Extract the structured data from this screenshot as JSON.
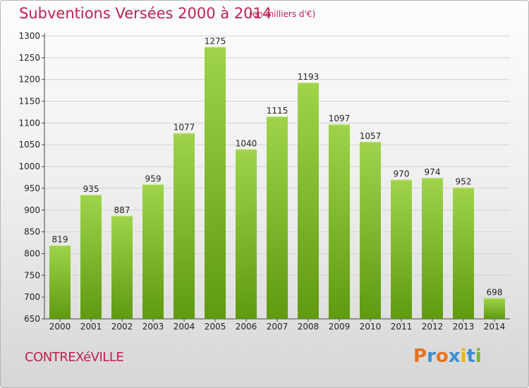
{
  "header": {
    "title": "Subventions Versées 2000 à 2014",
    "subtitle": "(en milliers d'€)"
  },
  "footer": {
    "commune": "CONTREXéVILLE",
    "logo": "Proxiti",
    "logo_colors": [
      "#e8731a",
      "#3d8fd1",
      "#e8731a",
      "#3d8fd1",
      "#f0b400",
      "#3d8fd1",
      "#76b82a"
    ]
  },
  "colors": {
    "bar_top": "#9fd44a",
    "bar_bottom": "#5f9a10",
    "accent_text": "#c0204f"
  },
  "chart_data": {
    "type": "bar",
    "title": "Subventions Versées 2000 à 2014",
    "subtitle": "(en milliers d'€)",
    "xlabel": "",
    "ylabel": "",
    "categories": [
      "2000",
      "2001",
      "2002",
      "2003",
      "2004",
      "2005",
      "2006",
      "2007",
      "2008",
      "2009",
      "2010",
      "2011",
      "2012",
      "2013",
      "2014"
    ],
    "values": [
      819,
      935,
      887,
      959,
      1077,
      1275,
      1040,
      1115,
      1193,
      1097,
      1057,
      970,
      974,
      952,
      698
    ],
    "ylim": [
      650,
      1300
    ],
    "yticks": [
      650,
      700,
      750,
      800,
      850,
      900,
      950,
      1000,
      1050,
      1100,
      1150,
      1200,
      1250,
      1300
    ],
    "grid": true
  }
}
